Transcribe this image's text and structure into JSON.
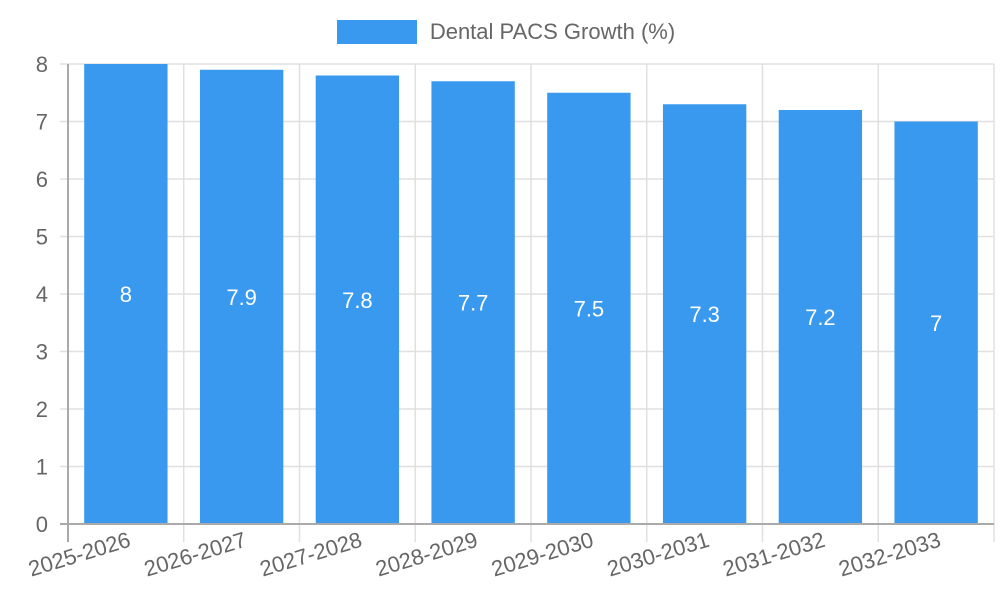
{
  "chart_data": {
    "type": "bar",
    "title": "",
    "legend": [
      {
        "label": "Dental PACS Growth (%)",
        "color": "#3899EE"
      }
    ],
    "legend_position": "top",
    "categories": [
      "2025-2026",
      "2026-2027",
      "2027-2028",
      "2028-2029",
      "2029-2030",
      "2030-2031",
      "2031-2032",
      "2032-2033"
    ],
    "series": [
      {
        "name": "Dental PACS Growth (%)",
        "values": [
          8,
          7.9,
          7.8,
          7.7,
          7.5,
          7.3,
          7.2,
          7
        ],
        "color": "#3899EE"
      }
    ],
    "data_labels": [
      "8",
      "7.9",
      "7.8",
      "7.7",
      "7.5",
      "7.3",
      "7.2",
      "7"
    ],
    "xlabel": "",
    "ylabel": "",
    "ylim": [
      0,
      8
    ],
    "y_ticks": [
      "0",
      "1",
      "2",
      "3",
      "4",
      "5",
      "6",
      "7",
      "8"
    ],
    "grid": true
  },
  "legend": {
    "label": "Dental PACS Growth (%)"
  }
}
